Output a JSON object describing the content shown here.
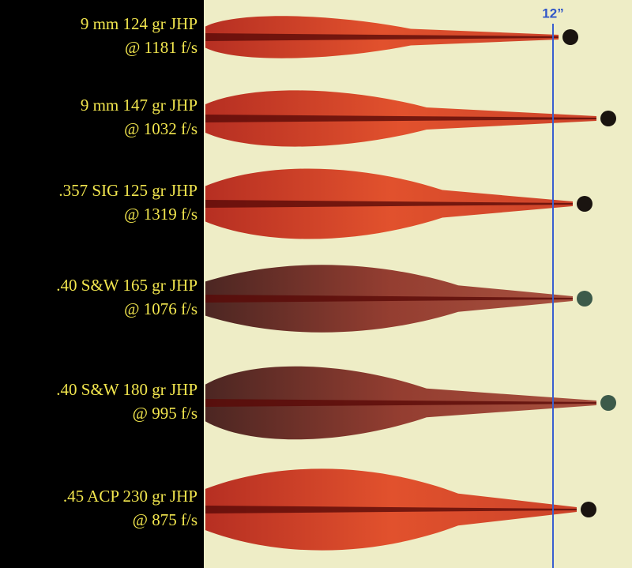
{
  "header": {
    "depth_label": "12”"
  },
  "rows": [
    {
      "cartridge": "9 mm 124 gr JHP",
      "velocity": "@ 1181 f/s"
    },
    {
      "cartridge": "9 mm 147 gr JHP",
      "velocity": "@ 1032 f/s"
    },
    {
      "cartridge": ".357 SIG 125 gr JHP",
      "velocity": "@ 1319 f/s"
    },
    {
      "cartridge": ".40 S&W 165 gr JHP",
      "velocity": "@ 1076 f/s"
    },
    {
      "cartridge": ".40 S&W 180 gr JHP",
      "velocity": "@ 995 f/s"
    },
    {
      "cartridge": ".45 ACP 230 gr JHP",
      "velocity": "@ 875 f/s"
    }
  ]
}
